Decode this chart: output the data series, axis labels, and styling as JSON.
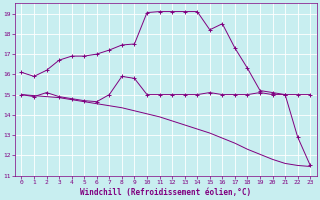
{
  "xlabel": "Windchill (Refroidissement éolien,°C)",
  "background_color": "#c8eef0",
  "line_color": "#800080",
  "grid_color": "#ffffff",
  "xlim": [
    -0.5,
    23.5
  ],
  "ylim": [
    11,
    19.5
  ],
  "yticks": [
    11,
    12,
    13,
    14,
    15,
    16,
    17,
    18,
    19
  ],
  "xticks": [
    0,
    1,
    2,
    3,
    4,
    5,
    6,
    7,
    8,
    9,
    10,
    11,
    12,
    13,
    14,
    15,
    16,
    17,
    18,
    19,
    20,
    21,
    22,
    23
  ],
  "curve1_x": [
    0,
    1,
    2,
    3,
    4,
    5,
    6,
    7,
    8,
    9,
    10,
    11,
    12,
    13,
    14,
    15,
    16,
    17,
    18,
    19,
    20,
    21,
    22,
    23
  ],
  "curve1_y": [
    16.1,
    15.9,
    16.2,
    16.7,
    16.9,
    16.9,
    17.0,
    17.2,
    17.45,
    17.5,
    19.05,
    19.1,
    19.1,
    19.1,
    19.1,
    18.2,
    18.5,
    17.3,
    16.3,
    15.2,
    15.1,
    15.0,
    12.9,
    11.5
  ],
  "curve2_x": [
    0,
    1,
    2,
    3,
    4,
    5,
    6,
    7,
    8,
    9,
    10,
    11,
    12,
    13,
    14,
    15,
    16,
    17,
    18,
    19,
    20,
    21,
    22,
    23
  ],
  "curve2_y": [
    15.0,
    14.9,
    15.1,
    14.9,
    14.8,
    14.7,
    14.65,
    15.0,
    15.9,
    15.8,
    15.0,
    15.0,
    15.0,
    15.0,
    15.0,
    15.1,
    15.0,
    15.0,
    15.0,
    15.1,
    15.0,
    15.0,
    15.0,
    15.0
  ],
  "curve3_x": [
    0,
    1,
    2,
    3,
    4,
    5,
    6,
    7,
    8,
    9,
    10,
    11,
    12,
    13,
    14,
    15,
    16,
    17,
    18,
    19,
    20,
    21,
    22,
    23
  ],
  "curve3_y": [
    15.0,
    14.95,
    14.9,
    14.85,
    14.75,
    14.65,
    14.55,
    14.45,
    14.35,
    14.2,
    14.05,
    13.9,
    13.7,
    13.5,
    13.3,
    13.1,
    12.85,
    12.6,
    12.3,
    12.05,
    11.8,
    11.6,
    11.5,
    11.45
  ]
}
